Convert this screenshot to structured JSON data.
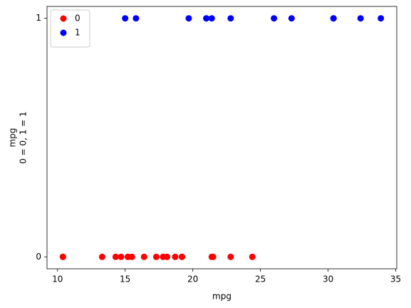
{
  "chart_data": {
    "type": "scatter",
    "xlabel": "mpg",
    "ylabel": [
      "mpg",
      "0 = 0, 1 = 1"
    ],
    "xlim": [
      9.225,
      35.075
    ],
    "ylim": [
      -0.05,
      1.05
    ],
    "xticks": [
      10,
      15,
      20,
      25,
      30,
      35
    ],
    "yticks": [
      0,
      1
    ],
    "legend": "upper left",
    "series": [
      {
        "name": "0",
        "color": "#ff0000",
        "x": [
          21.4,
          18.7,
          18.1,
          14.3,
          24.4,
          22.8,
          19.2,
          17.8,
          16.4,
          17.3,
          15.2,
          10.4,
          10.4,
          14.7,
          21.5,
          15.5,
          15.2,
          13.3,
          19.2
        ],
        "y": [
          0,
          0,
          0,
          0,
          0,
          0,
          0,
          0,
          0,
          0,
          0,
          0,
          0,
          0,
          0,
          0,
          0,
          0,
          0
        ]
      },
      {
        "name": "1",
        "color": "#0000ff",
        "x": [
          21.0,
          21.0,
          22.8,
          32.4,
          30.4,
          33.9,
          27.3,
          26.0,
          30.4,
          15.8,
          19.7,
          15.0,
          21.4
        ],
        "y": [
          1,
          1,
          1,
          1,
          1,
          1,
          1,
          1,
          1,
          1,
          1,
          1,
          1
        ]
      }
    ]
  }
}
